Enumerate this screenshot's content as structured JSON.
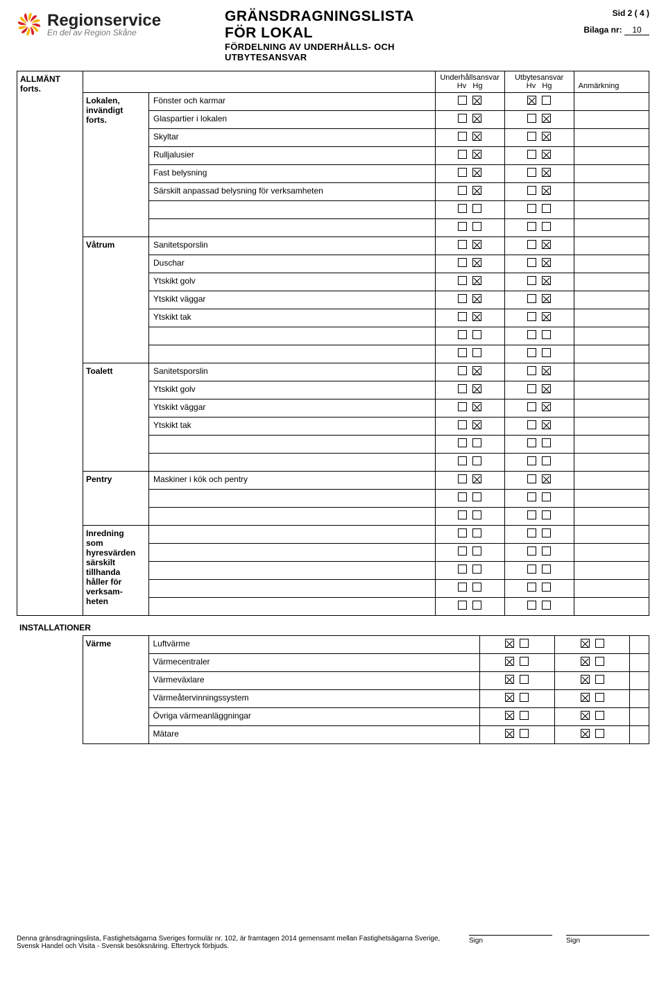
{
  "logo_colors": {
    "yellow": "#f7b500",
    "red": "#d8232a"
  },
  "brand": "Regionservice",
  "tagline": "En del av Region Skåne",
  "title_line1": "GRÄNSDRAGNINGSLISTA",
  "title_line2": "FÖR LOKAL",
  "subtitle_line1": "FÖRDELNING AV UNDERHÅLLS- OCH",
  "subtitle_line2": "UTBYTESANSVAR",
  "page_indicator": "Sid 2 ( 4 )",
  "bilaga_label": "Bilaga nr:",
  "bilaga_value": "10",
  "headers": {
    "underhall": "Underhållsansvar",
    "utbytes": "Utbytesansvar",
    "hv": "Hv",
    "hg": "Hg",
    "anmarkning": "Anmärkning"
  },
  "footer_text": "Denna gränsdragningslista, Fastighetsägarna Sveriges formulär nr. 102, är framtagen 2014 gemensamt mellan Fastighetsägarna Sverige, Svensk Handel och Visita - Svensk besöksnäring. Eftertryck förbjuds.",
  "sign_label": "Sign",
  "sections": [
    {
      "category": "ALLMÄNT\nforts.",
      "header_row": true,
      "groups": [
        {
          "subcat": "Lokalen,\ninvändigt\nforts.",
          "rows": [
            {
              "label": "Fönster och karmar",
              "u_hv": false,
              "u_hg": true,
              "b_hv": true,
              "b_hg": false
            },
            {
              "label": "Glaspartier i lokalen",
              "u_hv": false,
              "u_hg": true,
              "b_hv": false,
              "b_hg": true
            },
            {
              "label": "Skyltar",
              "u_hv": false,
              "u_hg": true,
              "b_hv": false,
              "b_hg": true
            },
            {
              "label": "Rulljalusier",
              "u_hv": false,
              "u_hg": true,
              "b_hv": false,
              "b_hg": true
            },
            {
              "label": "Fast belysning",
              "u_hv": false,
              "u_hg": true,
              "b_hv": false,
              "b_hg": true
            },
            {
              "label": "Särskilt anpassad belysning för verksamheten",
              "u_hv": false,
              "u_hg": true,
              "b_hv": false,
              "b_hg": true
            },
            {
              "label": "",
              "u_hv": false,
              "u_hg": false,
              "b_hv": false,
              "b_hg": false
            },
            {
              "label": "",
              "u_hv": false,
              "u_hg": false,
              "b_hv": false,
              "b_hg": false
            }
          ]
        },
        {
          "subcat": "Våtrum",
          "rows": [
            {
              "label": "Sanitetsporslin",
              "u_hv": false,
              "u_hg": true,
              "b_hv": false,
              "b_hg": true
            },
            {
              "label": "Duschar",
              "u_hv": false,
              "u_hg": true,
              "b_hv": false,
              "b_hg": true
            },
            {
              "label": "Ytskikt golv",
              "u_hv": false,
              "u_hg": true,
              "b_hv": false,
              "b_hg": true
            },
            {
              "label": "Ytskikt väggar",
              "u_hv": false,
              "u_hg": true,
              "b_hv": false,
              "b_hg": true
            },
            {
              "label": "Ytskikt tak",
              "u_hv": false,
              "u_hg": true,
              "b_hv": false,
              "b_hg": true
            },
            {
              "label": "",
              "u_hv": false,
              "u_hg": false,
              "b_hv": false,
              "b_hg": false
            },
            {
              "label": "",
              "u_hv": false,
              "u_hg": false,
              "b_hv": false,
              "b_hg": false
            }
          ]
        },
        {
          "subcat": "Toalett",
          "rows": [
            {
              "label": "Sanitetsporslin",
              "u_hv": false,
              "u_hg": true,
              "b_hv": false,
              "b_hg": true
            },
            {
              "label": "Ytskikt golv",
              "u_hv": false,
              "u_hg": true,
              "b_hv": false,
              "b_hg": true
            },
            {
              "label": "Ytskikt väggar",
              "u_hv": false,
              "u_hg": true,
              "b_hv": false,
              "b_hg": true
            },
            {
              "label": "Ytskikt tak",
              "u_hv": false,
              "u_hg": true,
              "b_hv": false,
              "b_hg": true
            },
            {
              "label": "",
              "u_hv": false,
              "u_hg": false,
              "b_hv": false,
              "b_hg": false
            },
            {
              "label": "",
              "u_hv": false,
              "u_hg": false,
              "b_hv": false,
              "b_hg": false
            }
          ]
        },
        {
          "subcat": "Pentry",
          "rows": [
            {
              "label": "Maskiner i kök och pentry",
              "u_hv": false,
              "u_hg": true,
              "b_hv": false,
              "b_hg": true
            },
            {
              "label": "",
              "u_hv": false,
              "u_hg": false,
              "b_hv": false,
              "b_hg": false
            },
            {
              "label": "",
              "u_hv": false,
              "u_hg": false,
              "b_hv": false,
              "b_hg": false
            }
          ]
        },
        {
          "subcat": "Inredning\nsom\nhyresvärden\nsärskilt\ntillhanda\nhåller för\nverksam-\nheten",
          "rows": [
            {
              "label": "",
              "u_hv": false,
              "u_hg": false,
              "b_hv": false,
              "b_hg": false
            },
            {
              "label": "",
              "u_hv": false,
              "u_hg": false,
              "b_hv": false,
              "b_hg": false
            },
            {
              "label": "",
              "u_hv": false,
              "u_hg": false,
              "b_hv": false,
              "b_hg": false
            },
            {
              "label": "",
              "u_hv": false,
              "u_hg": false,
              "b_hv": false,
              "b_hg": false
            },
            {
              "label": "",
              "u_hv": false,
              "u_hg": false,
              "b_hv": false,
              "b_hg": false
            }
          ]
        }
      ]
    },
    {
      "category": "INSTALLATIONER",
      "header_row": false,
      "groups": [
        {
          "subcat": "Värme",
          "rows": [
            {
              "label": "Luftvärme",
              "u_hv": true,
              "u_hg": false,
              "b_hv": true,
              "b_hg": false
            },
            {
              "label": "Värmecentraler",
              "u_hv": true,
              "u_hg": false,
              "b_hv": true,
              "b_hg": false
            },
            {
              "label": "Värmeväxlare",
              "u_hv": true,
              "u_hg": false,
              "b_hv": true,
              "b_hg": false
            },
            {
              "label": "Värmeåtervinningssystem",
              "u_hv": true,
              "u_hg": false,
              "b_hv": true,
              "b_hg": false
            },
            {
              "label": "Övriga värmeanläggningar",
              "u_hv": true,
              "u_hg": false,
              "b_hv": true,
              "b_hg": false
            },
            {
              "label": "Mätare",
              "u_hv": true,
              "u_hg": false,
              "b_hv": true,
              "b_hg": false
            }
          ]
        }
      ]
    }
  ]
}
